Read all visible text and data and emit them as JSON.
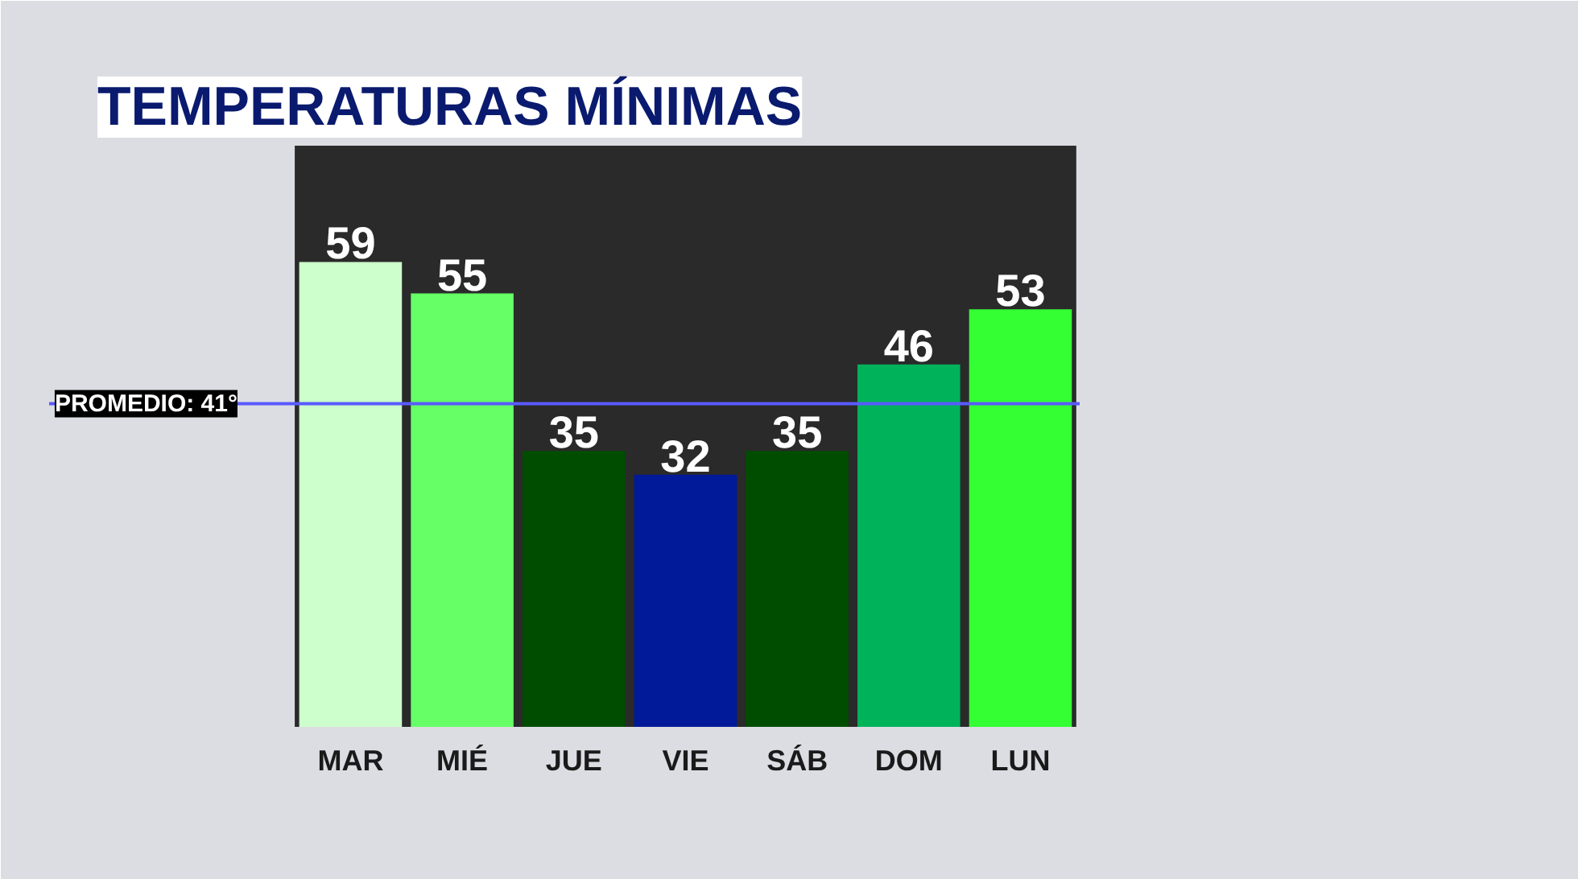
{
  "chart_data": {
    "type": "bar",
    "title": "TEMPERATURAS MÍNIMAS",
    "categories": [
      "MAR",
      "MIÉ",
      "JUE",
      "VIE",
      "SÁB",
      "DOM",
      "LUN"
    ],
    "values": [
      59,
      55,
      35,
      32,
      35,
      46,
      53
    ],
    "colors": [
      "#ccffcc",
      "#66ff66",
      "#004d00",
      "#001a99",
      "#004d00",
      "#00b35a",
      "#33ff33"
    ],
    "data_labels": true,
    "ref_lines": [
      {
        "axis": "y",
        "value": 41,
        "label": "PROMEDIO: 41°",
        "color": "#5a5aff"
      }
    ]
  }
}
